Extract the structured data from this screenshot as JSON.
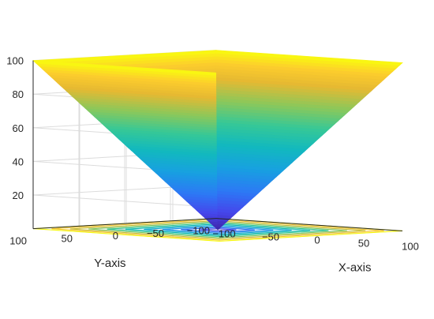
{
  "chart_data": {
    "type": "surface",
    "surface": {
      "function": "max(|x|, |y|)",
      "colormap": "parula",
      "contour_projection": true
    },
    "x_axis": {
      "label": "X-axis",
      "range": [
        -100,
        100
      ],
      "ticks": [
        -100,
        -50,
        0,
        50,
        100
      ],
      "tick_labels": [
        "−100",
        "−50",
        "0",
        "50",
        "100"
      ]
    },
    "y_axis": {
      "label": "Y-axis",
      "range": [
        -100,
        100
      ],
      "ticks": [
        -100,
        -50,
        0,
        50,
        100
      ],
      "tick_labels": [
        "−100",
        "−50",
        "0",
        "50",
        "100"
      ]
    },
    "z_axis": {
      "label": "",
      "range": [
        0,
        100
      ],
      "ticks": [
        20,
        40,
        60,
        80,
        100
      ],
      "tick_labels": [
        "20",
        "40",
        "60",
        "80",
        "100"
      ]
    },
    "contour_levels": [
      10,
      20,
      30,
      40,
      50,
      60,
      70,
      80,
      90,
      100
    ],
    "grid": true
  }
}
